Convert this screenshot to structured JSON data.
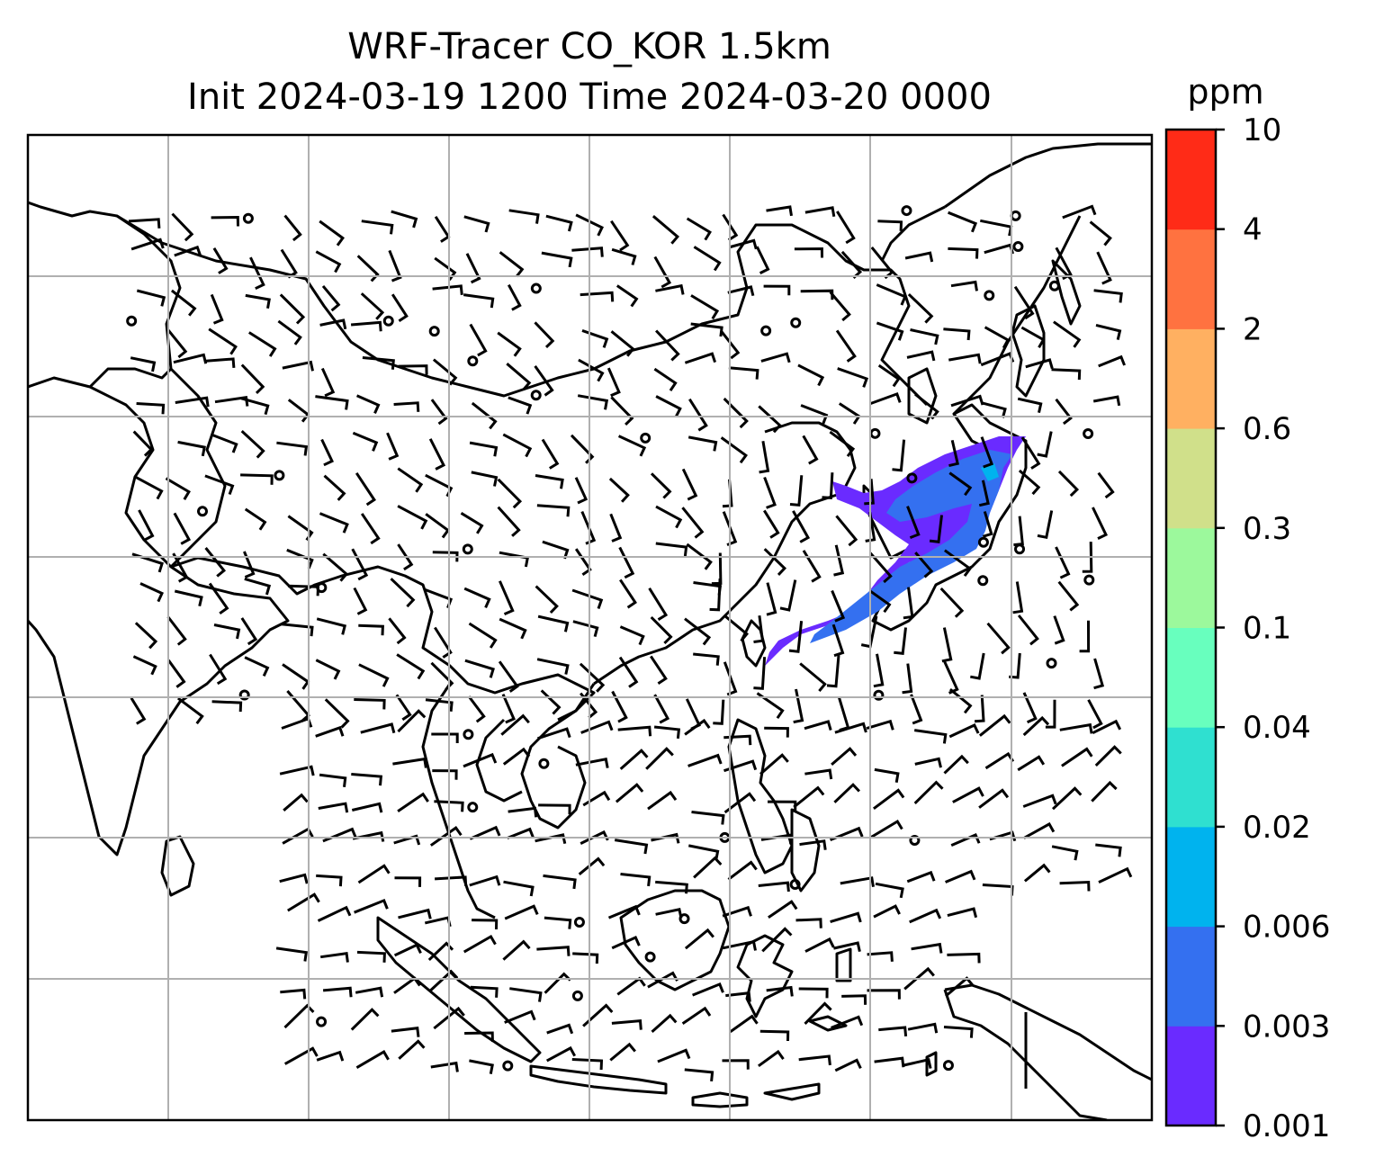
{
  "title": {
    "line1": "WRF-Tracer CO_KOR 1.5km",
    "line2": "Init 2024-03-19 1200 Time 2024-03-20 0000"
  },
  "colorbar": {
    "unit": "ppm",
    "ticks": [
      "0.001",
      "0.003",
      "0.006",
      "0.02",
      "0.04",
      "0.1",
      "0.3",
      "0.6",
      "2",
      "4",
      "10"
    ],
    "colors": [
      "#6a2bff",
      "#3470f0",
      "#00b3ee",
      "#2fe0d0",
      "#68ffbe",
      "#9cf99c",
      "#d0e08a",
      "#ffb061",
      "#ff7240",
      "#ff2b17"
    ]
  },
  "map": {
    "plume_colors": {
      "low": "#6a2bff",
      "mid": "#3470f0",
      "high": "#00b3ee"
    },
    "grid_on": true
  }
}
